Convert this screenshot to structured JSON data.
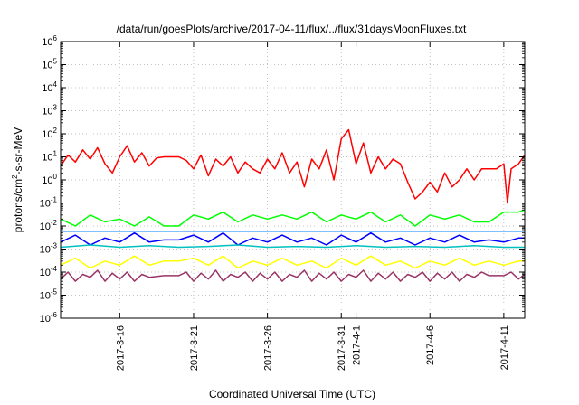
{
  "chart_data": {
    "type": "line",
    "title": "/data/run/goesPlots/archive/2017-04-11/flux/../flux/31daysMoonFluxes.txt",
    "xlabel": "Coordinated Universal Time (UTC)",
    "ylabel": {
      "prefix": "protons/cm",
      "sup": "2",
      "suffix": "-s-sr-MeV"
    },
    "yscale": "log",
    "ylim": [
      1e-06,
      1000000.0
    ],
    "xlim": [
      "2017-03-12",
      "2017-04-12 10:00"
    ],
    "grid": true,
    "y_ticks": [
      {
        "value": 1e-06,
        "base": "10",
        "exp": "-6"
      },
      {
        "value": 1e-05,
        "base": "10",
        "exp": "-5"
      },
      {
        "value": 0.0001,
        "base": "10",
        "exp": "-4"
      },
      {
        "value": 0.001,
        "base": "10",
        "exp": "-3"
      },
      {
        "value": 0.01,
        "base": "10",
        "exp": "-2"
      },
      {
        "value": 0.1,
        "base": "10",
        "exp": "-1"
      },
      {
        "value": 1.0,
        "base": "10",
        "exp": "0"
      },
      {
        "value": 10.0,
        "base": "10",
        "exp": "1"
      },
      {
        "value": 100.0,
        "base": "10",
        "exp": "2"
      },
      {
        "value": 1000.0,
        "base": "10",
        "exp": "3"
      },
      {
        "value": 10000.0,
        "base": "10",
        "exp": "4"
      },
      {
        "value": 100000.0,
        "base": "10",
        "exp": "5"
      },
      {
        "value": 1000000.0,
        "base": "10",
        "exp": "6"
      }
    ],
    "x_ticks": [
      {
        "value": "2017-03-16",
        "label": "2017-3-16"
      },
      {
        "value": "2017-03-21",
        "label": "2017-3-21"
      },
      {
        "value": "2017-03-26",
        "label": "2017-3-26"
      },
      {
        "value": "2017-03-31",
        "label": "2017-3-31"
      },
      {
        "value": "2017-04-01",
        "label": "2017-4-1"
      },
      {
        "value": "2017-04-06",
        "label": "2017-4-6"
      },
      {
        "value": "2017-04-11",
        "label": "2017-4-11"
      }
    ],
    "series": [
      {
        "color": "#ff0000",
        "points": [
          [
            "2017-03-12",
            4
          ],
          [
            "2017-03-12 12:00",
            12
          ],
          [
            "2017-03-13",
            6
          ],
          [
            "2017-03-13 12:00",
            20
          ],
          [
            "2017-03-14",
            8
          ],
          [
            "2017-03-14 12:00",
            25
          ],
          [
            "2017-03-15",
            5
          ],
          [
            "2017-03-15 12:00",
            2
          ],
          [
            "2017-03-16",
            10
          ],
          [
            "2017-03-16 12:00",
            30
          ],
          [
            "2017-03-17",
            6
          ],
          [
            "2017-03-17 12:00",
            15
          ],
          [
            "2017-03-18",
            4
          ],
          [
            "2017-03-18 12:00",
            9
          ],
          [
            "2017-03-19",
            10
          ],
          [
            "2017-03-20",
            10
          ],
          [
            "2017-03-20 12:00",
            7
          ],
          [
            "2017-03-21",
            3
          ],
          [
            "2017-03-21 12:00",
            12
          ],
          [
            "2017-03-22",
            1.5
          ],
          [
            "2017-03-22 12:00",
            8
          ],
          [
            "2017-03-23",
            4
          ],
          [
            "2017-03-23 12:00",
            10
          ],
          [
            "2017-03-24",
            2
          ],
          [
            "2017-03-24 12:00",
            6
          ],
          [
            "2017-03-25",
            3
          ],
          [
            "2017-03-25 12:00",
            2
          ],
          [
            "2017-03-26",
            8
          ],
          [
            "2017-03-26 12:00",
            3
          ],
          [
            "2017-03-27",
            15
          ],
          [
            "2017-03-27 12:00",
            2
          ],
          [
            "2017-03-28",
            6
          ],
          [
            "2017-03-28 12:00",
            0.5
          ],
          [
            "2017-03-29",
            8
          ],
          [
            "2017-03-29 12:00",
            3
          ],
          [
            "2017-03-30",
            20
          ],
          [
            "2017-03-30 12:00",
            1
          ],
          [
            "2017-03-31",
            60
          ],
          [
            "2017-03-31 12:00",
            150
          ],
          [
            "2017-04-01",
            5
          ],
          [
            "2017-04-01 12:00",
            40
          ],
          [
            "2017-04-02",
            2
          ],
          [
            "2017-04-02 12:00",
            10
          ],
          [
            "2017-04-03",
            3
          ],
          [
            "2017-04-03 12:00",
            8
          ],
          [
            "2017-04-04",
            5
          ],
          [
            "2017-04-04 12:00",
            0.8
          ],
          [
            "2017-04-05",
            0.15
          ],
          [
            "2017-04-05 12:00",
            0.3
          ],
          [
            "2017-04-06",
            0.8
          ],
          [
            "2017-04-06 12:00",
            0.3
          ],
          [
            "2017-04-07",
            2
          ],
          [
            "2017-04-07 12:00",
            0.5
          ],
          [
            "2017-04-08",
            1
          ],
          [
            "2017-04-08 12:00",
            3
          ],
          [
            "2017-04-09",
            1
          ],
          [
            "2017-04-09 12:00",
            3
          ],
          [
            "2017-04-10",
            3
          ],
          [
            "2017-04-10 12:00",
            3
          ],
          [
            "2017-04-11",
            5
          ],
          [
            "2017-04-11 06:00",
            0.1
          ],
          [
            "2017-04-11 12:00",
            3
          ],
          [
            "2017-04-12",
            5
          ],
          [
            "2017-04-12 10:00",
            12
          ]
        ]
      },
      {
        "color": "#00ff00",
        "points": [
          [
            "2017-03-12",
            0.02
          ],
          [
            "2017-03-13",
            0.01
          ],
          [
            "2017-03-14",
            0.03
          ],
          [
            "2017-03-15",
            0.015
          ],
          [
            "2017-03-16",
            0.02
          ],
          [
            "2017-03-17",
            0.01
          ],
          [
            "2017-03-18",
            0.025
          ],
          [
            "2017-03-19",
            0.01
          ],
          [
            "2017-03-20",
            0.01
          ],
          [
            "2017-03-21",
            0.03
          ],
          [
            "2017-03-22",
            0.02
          ],
          [
            "2017-03-23",
            0.04
          ],
          [
            "2017-03-24",
            0.015
          ],
          [
            "2017-03-25",
            0.03
          ],
          [
            "2017-03-26",
            0.02
          ],
          [
            "2017-03-27",
            0.03
          ],
          [
            "2017-03-28",
            0.02
          ],
          [
            "2017-03-29",
            0.04
          ],
          [
            "2017-03-30",
            0.015
          ],
          [
            "2017-03-31",
            0.03
          ],
          [
            "2017-04-01",
            0.02
          ],
          [
            "2017-04-02",
            0.04
          ],
          [
            "2017-04-03",
            0.015
          ],
          [
            "2017-04-04",
            0.03
          ],
          [
            "2017-04-05",
            0.01
          ],
          [
            "2017-04-06",
            0.03
          ],
          [
            "2017-04-07",
            0.02
          ],
          [
            "2017-04-08",
            0.03
          ],
          [
            "2017-04-09",
            0.015
          ],
          [
            "2017-04-10",
            0.015
          ],
          [
            "2017-04-11",
            0.04
          ],
          [
            "2017-04-12",
            0.04
          ],
          [
            "2017-04-12 10:00",
            0.05
          ]
        ]
      },
      {
        "color": "#0000ff",
        "points": [
          [
            "2017-03-12",
            0.002
          ],
          [
            "2017-03-13",
            0.004
          ],
          [
            "2017-03-14",
            0.0015
          ],
          [
            "2017-03-15",
            0.003
          ],
          [
            "2017-03-16",
            0.002
          ],
          [
            "2017-03-17",
            0.005
          ],
          [
            "2017-03-18",
            0.002
          ],
          [
            "2017-03-19",
            0.0025
          ],
          [
            "2017-03-20",
            0.0025
          ],
          [
            "2017-03-21",
            0.004
          ],
          [
            "2017-03-22",
            0.002
          ],
          [
            "2017-03-23",
            0.005
          ],
          [
            "2017-03-24",
            0.0015
          ],
          [
            "2017-03-25",
            0.003
          ],
          [
            "2017-03-26",
            0.002
          ],
          [
            "2017-03-27",
            0.004
          ],
          [
            "2017-03-28",
            0.002
          ],
          [
            "2017-03-29",
            0.003
          ],
          [
            "2017-03-30",
            0.0015
          ],
          [
            "2017-03-31",
            0.004
          ],
          [
            "2017-04-01",
            0.002
          ],
          [
            "2017-04-02",
            0.005
          ],
          [
            "2017-04-03",
            0.002
          ],
          [
            "2017-04-04",
            0.003
          ],
          [
            "2017-04-05",
            0.0015
          ],
          [
            "2017-04-06",
            0.003
          ],
          [
            "2017-04-07",
            0.002
          ],
          [
            "2017-04-08",
            0.004
          ],
          [
            "2017-04-09",
            0.002
          ],
          [
            "2017-04-10",
            0.0025
          ],
          [
            "2017-04-11",
            0.002
          ],
          [
            "2017-04-12",
            0.003
          ],
          [
            "2017-04-12 10:00",
            0.003
          ]
        ]
      },
      {
        "color": "#0080ff",
        "points": [
          [
            "2017-03-12",
            0.006
          ],
          [
            "2017-04-12 10:00",
            0.006
          ]
        ]
      },
      {
        "color": "#00c0c0",
        "points": [
          [
            "2017-03-12",
            0.0012
          ],
          [
            "2017-03-14",
            0.0015
          ],
          [
            "2017-03-16",
            0.0012
          ],
          [
            "2017-03-18",
            0.0014
          ],
          [
            "2017-03-20",
            0.0012
          ],
          [
            "2017-03-22",
            0.0013
          ],
          [
            "2017-03-24",
            0.0015
          ],
          [
            "2017-03-26",
            0.0012
          ],
          [
            "2017-03-28",
            0.0013
          ],
          [
            "2017-03-30",
            0.0012
          ],
          [
            "2017-04-01",
            0.0014
          ],
          [
            "2017-04-03",
            0.0012
          ],
          [
            "2017-04-05",
            0.0013
          ],
          [
            "2017-04-07",
            0.0012
          ],
          [
            "2017-04-09",
            0.0014
          ],
          [
            "2017-04-11",
            0.0012
          ],
          [
            "2017-04-12 10:00",
            0.0012
          ]
        ]
      },
      {
        "color": "#ffff00",
        "points": [
          [
            "2017-03-12",
            0.0002
          ],
          [
            "2017-03-13",
            0.0004
          ],
          [
            "2017-03-14",
            0.00015
          ],
          [
            "2017-03-15",
            0.0003
          ],
          [
            "2017-03-16",
            0.0002
          ],
          [
            "2017-03-17",
            0.0005
          ],
          [
            "2017-03-18",
            0.0002
          ],
          [
            "2017-03-19",
            0.0003
          ],
          [
            "2017-03-20",
            0.0003
          ],
          [
            "2017-03-21",
            0.0004
          ],
          [
            "2017-03-22",
            0.0002
          ],
          [
            "2017-03-23",
            0.0005
          ],
          [
            "2017-03-24",
            0.00015
          ],
          [
            "2017-03-25",
            0.0003
          ],
          [
            "2017-03-26",
            0.0002
          ],
          [
            "2017-03-27",
            0.0004
          ],
          [
            "2017-03-28",
            0.0002
          ],
          [
            "2017-03-29",
            0.0003
          ],
          [
            "2017-03-30",
            0.00015
          ],
          [
            "2017-03-31",
            0.0004
          ],
          [
            "2017-04-01",
            0.0002
          ],
          [
            "2017-04-02",
            0.0005
          ],
          [
            "2017-04-03",
            0.0002
          ],
          [
            "2017-04-04",
            0.0003
          ],
          [
            "2017-04-05",
            0.00015
          ],
          [
            "2017-04-06",
            0.0003
          ],
          [
            "2017-04-07",
            0.0002
          ],
          [
            "2017-04-08",
            0.0004
          ],
          [
            "2017-04-09",
            0.0002
          ],
          [
            "2017-04-10",
            0.0003
          ],
          [
            "2017-04-11",
            0.0002
          ],
          [
            "2017-04-12",
            0.0003
          ],
          [
            "2017-04-12 10:00",
            0.0003
          ]
        ]
      },
      {
        "color": "#993366",
        "points": [
          [
            "2017-03-12",
            5e-05
          ],
          [
            "2017-03-12 12:00",
            0.0001
          ],
          [
            "2017-03-13",
            4e-05
          ],
          [
            "2017-03-13 12:00",
            8e-05
          ],
          [
            "2017-03-14",
            6e-05
          ],
          [
            "2017-03-14 12:00",
            0.00012
          ],
          [
            "2017-03-15",
            4e-05
          ],
          [
            "2017-03-15 12:00",
            9e-05
          ],
          [
            "2017-03-16",
            5e-05
          ],
          [
            "2017-03-16 12:00",
            0.0001
          ],
          [
            "2017-03-17",
            4e-05
          ],
          [
            "2017-03-17 12:00",
            8e-05
          ],
          [
            "2017-03-18",
            6e-05
          ],
          [
            "2017-03-19",
            7e-05
          ],
          [
            "2017-03-20",
            7e-05
          ],
          [
            "2017-03-20 12:00",
            0.0001
          ],
          [
            "2017-03-21",
            4e-05
          ],
          [
            "2017-03-21 12:00",
            9e-05
          ],
          [
            "2017-03-22",
            5e-05
          ],
          [
            "2017-03-22 12:00",
            0.00012
          ],
          [
            "2017-03-23",
            4e-05
          ],
          [
            "2017-03-23 12:00",
            8e-05
          ],
          [
            "2017-03-24",
            6e-05
          ],
          [
            "2017-03-24 12:00",
            0.0001
          ],
          [
            "2017-03-25",
            4e-05
          ],
          [
            "2017-03-25 12:00",
            9e-05
          ],
          [
            "2017-03-26",
            5e-05
          ],
          [
            "2017-03-26 12:00",
            0.0001
          ],
          [
            "2017-03-27",
            4e-05
          ],
          [
            "2017-03-27 12:00",
            8e-05
          ],
          [
            "2017-03-28",
            6e-05
          ],
          [
            "2017-03-28 12:00",
            0.00012
          ],
          [
            "2017-03-29",
            4e-05
          ],
          [
            "2017-03-29 12:00",
            9e-05
          ],
          [
            "2017-03-30",
            5e-05
          ],
          [
            "2017-03-30 12:00",
            0.0001
          ],
          [
            "2017-03-31",
            4e-05
          ],
          [
            "2017-03-31 12:00",
            8e-05
          ],
          [
            "2017-04-01",
            6e-05
          ],
          [
            "2017-04-01 12:00",
            0.00012
          ],
          [
            "2017-04-02",
            4e-05
          ],
          [
            "2017-04-02 12:00",
            9e-05
          ],
          [
            "2017-04-03",
            5e-05
          ],
          [
            "2017-04-03 12:00",
            0.0001
          ],
          [
            "2017-04-04",
            4e-05
          ],
          [
            "2017-04-04 12:00",
            8e-05
          ],
          [
            "2017-04-05",
            6e-05
          ],
          [
            "2017-04-05 12:00",
            0.0001
          ],
          [
            "2017-04-06",
            4e-05
          ],
          [
            "2017-04-06 12:00",
            9e-05
          ],
          [
            "2017-04-07",
            5e-05
          ],
          [
            "2017-04-07 12:00",
            0.0001
          ],
          [
            "2017-04-08",
            4e-05
          ],
          [
            "2017-04-08 12:00",
            8e-05
          ],
          [
            "2017-04-09",
            6e-05
          ],
          [
            "2017-04-09 12:00",
            0.0001
          ],
          [
            "2017-04-10",
            7e-05
          ],
          [
            "2017-04-11",
            7e-05
          ],
          [
            "2017-04-11 12:00",
            0.0001
          ],
          [
            "2017-04-12",
            5e-05
          ],
          [
            "2017-04-12 10:00",
            8e-05
          ]
        ]
      }
    ]
  }
}
